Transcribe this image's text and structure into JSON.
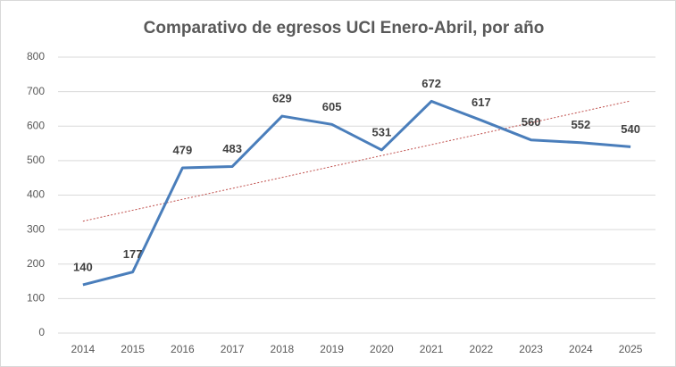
{
  "chart_data": {
    "type": "line",
    "title": "Comparativo de egresos UCI Enero-Abril, por año",
    "categories": [
      "2014",
      "2015",
      "2016",
      "2017",
      "2018",
      "2019",
      "2020",
      "2021",
      "2022",
      "2023",
      "2024",
      "2025"
    ],
    "series": [
      {
        "color": "#4a7ebb",
        "values": [
          140,
          177,
          479,
          483,
          629,
          605,
          531,
          672,
          617,
          560,
          552,
          540
        ]
      }
    ],
    "ylim": [
      0,
      800
    ],
    "yticks": [
      0,
      100,
      200,
      300,
      400,
      500,
      600,
      700,
      800
    ],
    "grid": true,
    "data_labels": true,
    "trendline": "linear",
    "trendline_color": "#c0504d"
  }
}
